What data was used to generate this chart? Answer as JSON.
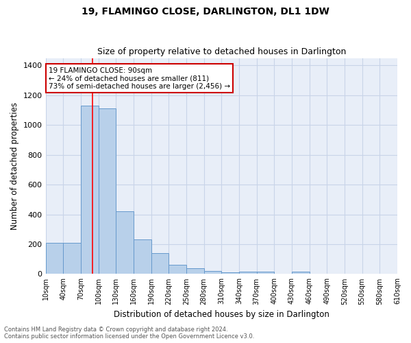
{
  "title": "19, FLAMINGO CLOSE, DARLINGTON, DL1 1DW",
  "subtitle": "Size of property relative to detached houses in Darlington",
  "xlabel": "Distribution of detached houses by size in Darlington",
  "ylabel": "Number of detached properties",
  "footnote1": "Contains HM Land Registry data © Crown copyright and database right 2024.",
  "footnote2": "Contains public sector information licensed under the Open Government Licence v3.0.",
  "bar_left_edges": [
    10,
    40,
    70,
    100,
    130,
    160,
    190,
    220,
    250,
    280,
    310,
    340,
    370,
    400,
    430,
    460,
    490,
    520,
    550,
    580
  ],
  "bar_heights": [
    210,
    210,
    1130,
    1110,
    420,
    230,
    140,
    60,
    40,
    20,
    10,
    15,
    15,
    0,
    15,
    0,
    0,
    0,
    0,
    0
  ],
  "bar_color": "#b8d0ea",
  "bar_edgecolor": "#6699cc",
  "grid_color": "#c8d4e8",
  "bg_color": "#e8eef8",
  "red_line_x": 90,
  "annotation_text": "19 FLAMINGO CLOSE: 90sqm\n← 24% of detached houses are smaller (811)\n73% of semi-detached houses are larger (2,456) →",
  "annotation_box_color": "#ffffff",
  "annotation_box_edgecolor": "#cc0000",
  "ylim": [
    0,
    1450
  ],
  "yticks": [
    0,
    200,
    400,
    600,
    800,
    1000,
    1200,
    1400
  ],
  "xtick_positions": [
    10,
    40,
    70,
    100,
    130,
    160,
    190,
    220,
    250,
    280,
    310,
    340,
    370,
    400,
    430,
    460,
    490,
    520,
    550,
    580,
    610
  ],
  "tick_labels": [
    "10sqm",
    "40sqm",
    "70sqm",
    "100sqm",
    "130sqm",
    "160sqm",
    "190sqm",
    "220sqm",
    "250sqm",
    "280sqm",
    "310sqm",
    "340sqm",
    "370sqm",
    "400sqm",
    "430sqm",
    "460sqm",
    "490sqm",
    "520sqm",
    "550sqm",
    "580sqm",
    "610sqm"
  ]
}
